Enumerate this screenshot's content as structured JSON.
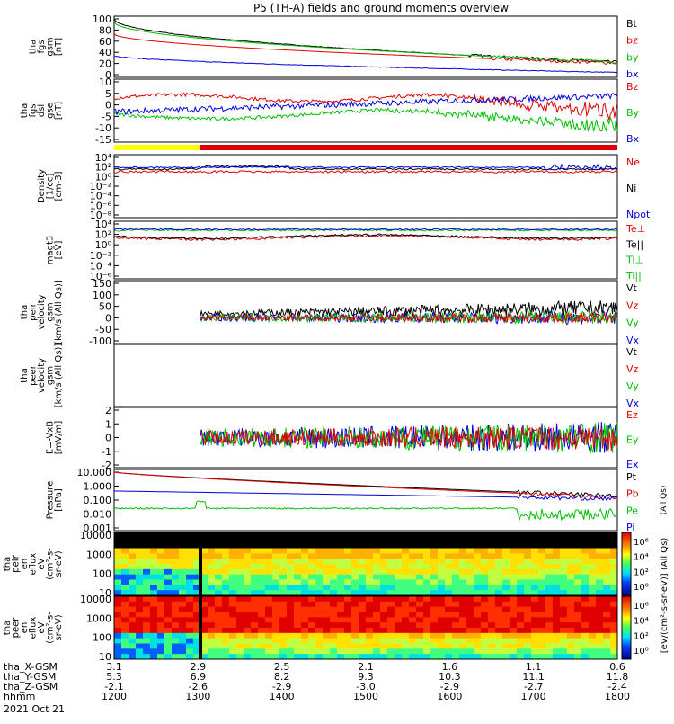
{
  "title": "P5 (TH-A) fields and ground moments overview",
  "panels": [
    {
      "id": "fgs-mag",
      "ylabel": [
        "tha",
        "fgs",
        "gsm",
        "[nT]"
      ],
      "ticks": [
        "100",
        "80",
        "60",
        "40",
        "20",
        "0"
      ],
      "legend": [
        {
          "name": "Bt",
          "color": "#000000"
        },
        {
          "name": "bz",
          "color": "#e00000"
        },
        {
          "name": "by",
          "color": "#00c000"
        },
        {
          "name": "bx",
          "color": "#0000e0"
        }
      ]
    },
    {
      "id": "fgs-dsl",
      "ylabel": [
        "tha",
        "fgs",
        "dsl",
        "gse",
        "[nT]"
      ],
      "ticks": [
        "10",
        "5",
        "0",
        "-5",
        "-10",
        "-15"
      ],
      "legend": [
        {
          "name": "Bz",
          "color": "#e00000"
        },
        {
          "name": "By",
          "color": "#00c000"
        },
        {
          "name": "Bx",
          "color": "#0000e0"
        }
      ]
    },
    {
      "id": "density",
      "ylabel": [
        "Density",
        "[1/cc]",
        "[cm-3]"
      ],
      "ticks": [
        "10⁴",
        "10²",
        "10⁰",
        "10⁻²",
        "10⁻⁴",
        "10⁻⁶",
        "10⁻⁸"
      ],
      "legend": [
        {
          "name": "Ne",
          "color": "#e00000"
        },
        {
          "name": "Ni",
          "color": "#000000"
        },
        {
          "name": "Npot",
          "color": "#0000e0"
        }
      ]
    },
    {
      "id": "temperature",
      "ylabel": [
        "magt3",
        "[eV]"
      ],
      "ticks": [
        "10⁴",
        "10²",
        "10⁰",
        "10⁻²",
        "10⁻⁴",
        "10⁻⁶"
      ],
      "legend": [
        {
          "name": "Te⊥",
          "color": "#e00000"
        },
        {
          "name": "Te||",
          "color": "#000000"
        },
        {
          "name": "Ti⊥",
          "color": "#00c000"
        },
        {
          "name": "Ti||",
          "color": "#00c000"
        }
      ]
    },
    {
      "id": "peir-velocity",
      "ylabel": [
        "tha",
        "peir",
        "velocity",
        "gsm",
        "[km/s (All Qs)]"
      ],
      "ticks": [
        "150",
        "100",
        "50",
        "0",
        "-50",
        "-100"
      ],
      "legend": [
        {
          "name": "Vt",
          "color": "#000000"
        },
        {
          "name": "Vz",
          "color": "#e00000"
        },
        {
          "name": "Vy",
          "color": "#00c000"
        },
        {
          "name": "Vx",
          "color": "#0000e0"
        }
      ]
    },
    {
      "id": "peer-velocity",
      "ylabel": [
        "tha",
        "peer",
        "velocity",
        "gsm",
        "[km/s (All Qs)]"
      ],
      "ticks": [],
      "legend": [
        {
          "name": "Vt",
          "color": "#000000"
        },
        {
          "name": "Vz",
          "color": "#e00000"
        },
        {
          "name": "Vy",
          "color": "#00c000"
        },
        {
          "name": "Vx",
          "color": "#0000e0"
        }
      ]
    },
    {
      "id": "efield",
      "ylabel": [
        "E=-VxB",
        "[mV/m]"
      ],
      "ticks": [
        "2",
        "1",
        "0",
        "-1",
        "-2"
      ],
      "legend": [
        {
          "name": "Ez",
          "color": "#e00000"
        },
        {
          "name": "Ey",
          "color": "#00c000"
        },
        {
          "name": "Ex",
          "color": "#0000e0"
        }
      ]
    },
    {
      "id": "pressure",
      "ylabel": [
        "Pressure",
        "[nPa]"
      ],
      "ticks": [
        "10.000",
        "1.000",
        "0.100",
        "0.010",
        "0.001"
      ],
      "legend": [
        {
          "name": "Pt",
          "color": "#000000"
        },
        {
          "name": "Pb",
          "color": "#e00000"
        },
        {
          "name": "Pe",
          "color": "#00c000"
        },
        {
          "name": "Pi",
          "color": "#0000e0"
        }
      ],
      "side_note": "(All Qs)"
    },
    {
      "id": "peir-eflux",
      "ylabel": [
        "tha",
        "peir",
        "en",
        "eflux",
        "eV",
        "(cm²-s-",
        "sr-eV)"
      ],
      "ticks": [
        "10000",
        "1000",
        "100",
        "10"
      ]
    },
    {
      "id": "peer-eflux",
      "ylabel": [
        "tha",
        "peer",
        "en",
        "eflux",
        "eV",
        "(cm²-s-",
        "sr-eV)"
      ],
      "ticks": [
        "10000",
        "1000",
        "100",
        "10"
      ]
    }
  ],
  "colorbar": {
    "ticks": [
      "10⁶",
      "10⁴",
      "10²",
      "10⁰"
    ],
    "label": "[eV/(cm²-s-sr-eV)] (All Qs)"
  },
  "xaxis": {
    "rows": [
      {
        "label": "tha_X-GSM",
        "values": [
          "3.1",
          "2.9",
          "2.5",
          "2.1",
          "1.6",
          "1.1",
          "0.6"
        ]
      },
      {
        "label": "tha_Y-GSM",
        "values": [
          "5.3",
          "6.9",
          "8.2",
          "9.3",
          "10.3",
          "11.1",
          "11.8"
        ]
      },
      {
        "label": "tha_Z-GSM",
        "values": [
          "-2.1",
          "-2.6",
          "-2.9",
          "-3.0",
          "-2.9",
          "-2.7",
          "-2.4"
        ]
      },
      {
        "label": "hhmm",
        "values": [
          "1200",
          "1300",
          "1400",
          "1500",
          "1600",
          "1700",
          "1800"
        ]
      }
    ],
    "date": "2021 Oct 21"
  }
}
